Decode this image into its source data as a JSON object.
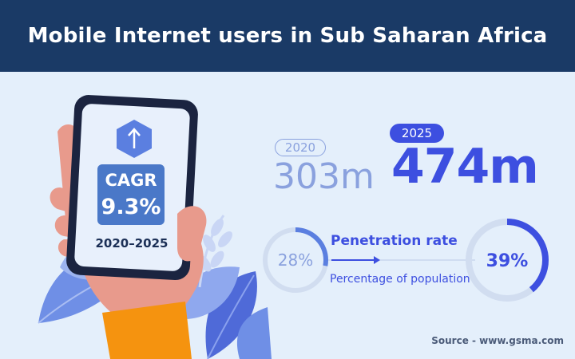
{
  "header": {
    "title": "Mobile Internet users in Sub Saharan Africa"
  },
  "phone": {
    "cagr_label": "CAGR",
    "cagr_value": "9.3%",
    "period": "2020–2025",
    "icon": "arrow-up-icon"
  },
  "users": {
    "year_2020": "2020",
    "value_2020": "303m",
    "year_2025": "2025",
    "value_2025": "474m"
  },
  "penetration": {
    "title": "Penetration rate",
    "subtitle": "Percentage of population",
    "value_2020": "28%",
    "fraction_2020": 0.28,
    "value_2025": "39%",
    "fraction_2025": 0.39
  },
  "footer": {
    "source": "Source - www.gsma.com"
  },
  "colors": {
    "header_bg": "#1a3a66",
    "background": "#e4effb",
    "accent": "#3d4fe0",
    "muted": "#8aa1de",
    "skin": "#e89a8c",
    "sleeve": "#f5930f",
    "cagr_box": "#4a78c8"
  }
}
